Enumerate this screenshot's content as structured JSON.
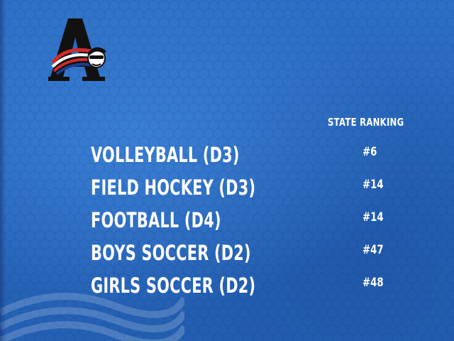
{
  "colors": {
    "background": "#2a6bc2",
    "text": "#ffffff",
    "logo_black": "#111111",
    "logo_red": "#d12b2b"
  },
  "logo": {
    "icon": "team-logo-letter-a-icon"
  },
  "table": {
    "header": "STATE RANKING",
    "rows": [
      {
        "name": "VOLLEYBALL (D3)",
        "rank": "#6"
      },
      {
        "name": "FIELD HOCKEY (D3)",
        "rank": "#14"
      },
      {
        "name": "FOOTBALL (D4)",
        "rank": "#14"
      },
      {
        "name": "BOYS SOCCER (D2)",
        "rank": "#47"
      },
      {
        "name": "GIRLS SOCCER (D2)",
        "rank": "#48"
      }
    ]
  }
}
